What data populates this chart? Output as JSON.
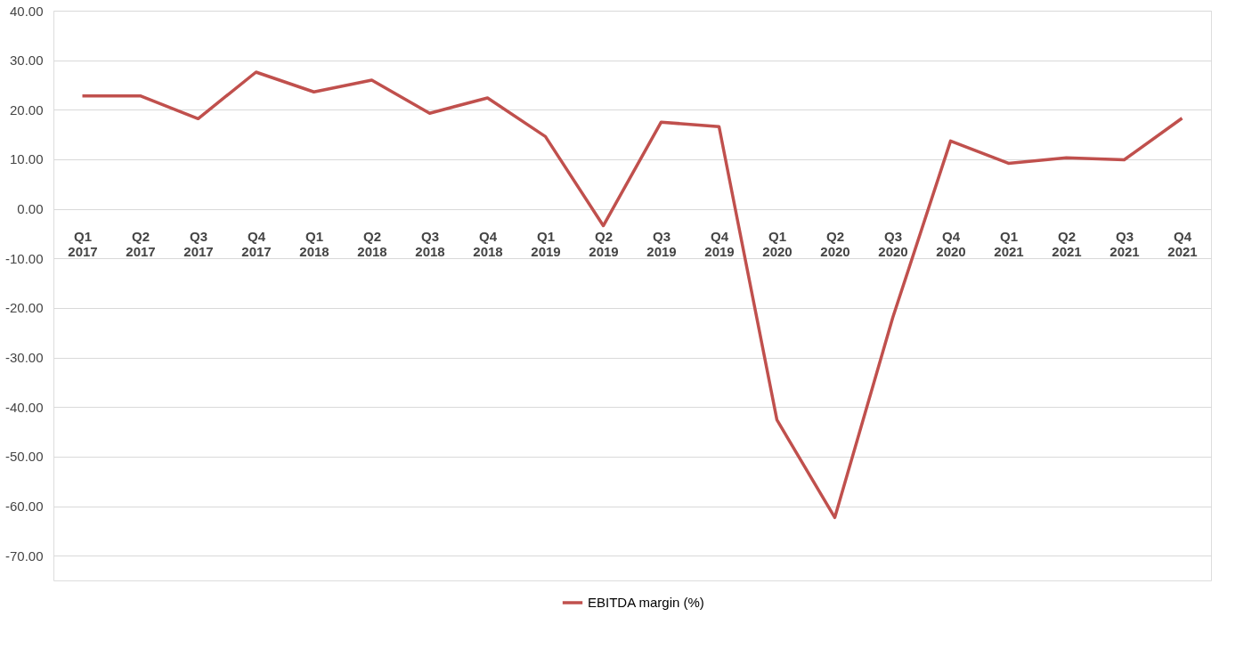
{
  "chart_data": {
    "type": "line",
    "categories": [
      "Q1 2017",
      "Q2 2017",
      "Q3 2017",
      "Q4 2017",
      "Q1 2018",
      "Q2 2018",
      "Q3 2018",
      "Q4 2018",
      "Q1 2019",
      "Q2 2019",
      "Q3 2019",
      "Q4 2019",
      "Q1 2020",
      "Q2 2020",
      "Q3 2020",
      "Q4 2020",
      "Q1 2021",
      "Q2 2021",
      "Q3 2021",
      "Q4 2021"
    ],
    "series": [
      {
        "name": "EBITDA margin (%)",
        "color": "#c0504d",
        "values": [
          22.8,
          22.8,
          18.2,
          27.6,
          23.6,
          26.0,
          19.3,
          22.4,
          14.6,
          -3.4,
          17.5,
          16.6,
          -42.6,
          -62.3,
          -22.0,
          13.7,
          9.2,
          10.3,
          9.9,
          18.3
        ]
      }
    ],
    "ylim": [
      -75,
      40
    ],
    "yticks": [
      {
        "value": 40,
        "label": "40.00"
      },
      {
        "value": 30,
        "label": "30.00"
      },
      {
        "value": 20,
        "label": "20.00"
      },
      {
        "value": 10,
        "label": "10.00"
      },
      {
        "value": 0,
        "label": "0.00"
      },
      {
        "value": -10,
        "label": "-10.00"
      },
      {
        "value": -20,
        "label": "-20.00"
      },
      {
        "value": -30,
        "label": "-30.00"
      },
      {
        "value": -40,
        "label": "-40.00"
      },
      {
        "value": -50,
        "label": "-50.00"
      },
      {
        "value": -60,
        "label": "-60.00"
      },
      {
        "value": -70,
        "label": "-70.00"
      }
    ],
    "grid": "y",
    "legend": "bottom",
    "line_style": "solid",
    "marker": "none"
  }
}
